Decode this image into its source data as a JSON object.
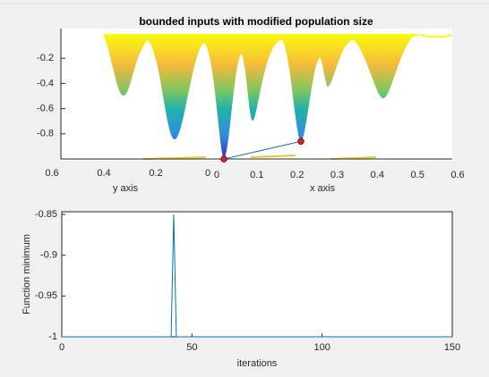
{
  "chart_data": [
    {
      "type": "surface",
      "title": "bounded inputs with modified population size",
      "xlabel": "x axis",
      "ylabel": "y axis",
      "xlim": [
        0,
        0.6
      ],
      "xticks": [
        0,
        0.1,
        0.2,
        0.3,
        0.4,
        0.5,
        0.6
      ],
      "ylim": [
        0,
        0.6
      ],
      "yticks": [
        0.6,
        0.4,
        0.2,
        0
      ],
      "zlim": [
        -1,
        0
      ],
      "zticks": [
        -0.2,
        -0.4,
        -0.6,
        -0.8
      ],
      "markers": {
        "z": [
          -1,
          -0.86
        ],
        "color": "#d62728"
      },
      "line_color": "#0072bd"
    },
    {
      "type": "line",
      "xlabel": "iterations",
      "ylabel": "Function minimum",
      "x": [
        0,
        42,
        43,
        44,
        150
      ],
      "values": [
        -1,
        -1,
        -0.85,
        -1,
        -1
      ],
      "color": "#0072bd",
      "xlim": [
        0,
        150
      ],
      "xticks": [
        0,
        50,
        100,
        150
      ],
      "ylim": [
        -1,
        -0.85
      ],
      "yticks": [
        -1,
        -0.95,
        -0.9,
        -0.85
      ]
    }
  ]
}
